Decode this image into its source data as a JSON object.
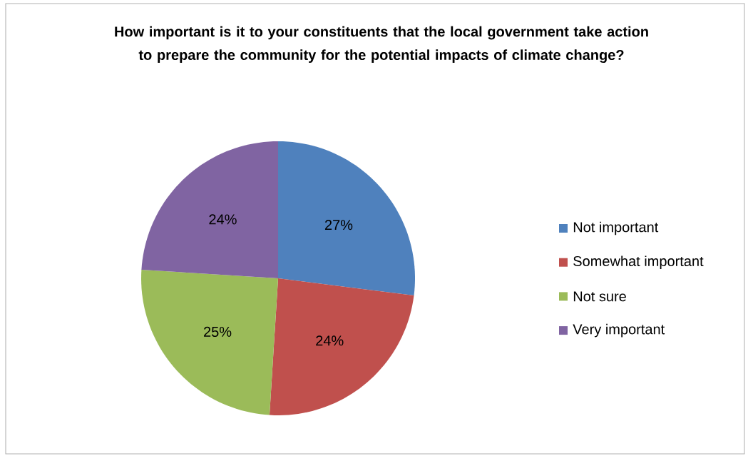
{
  "chart_data": {
    "type": "pie",
    "title": "How important is it to your constituents that the local government take action to prepare the community for the potential impacts of climate change?",
    "categories": [
      "Not important",
      "Somewhat important",
      "Not sure",
      "Very important"
    ],
    "values": [
      27,
      24,
      25,
      24
    ],
    "value_labels": [
      "27%",
      "24%",
      "25%",
      "24%"
    ],
    "colors": [
      "#4f81bd",
      "#c0504d",
      "#9bbb59",
      "#8064a2"
    ],
    "legend": "right"
  }
}
